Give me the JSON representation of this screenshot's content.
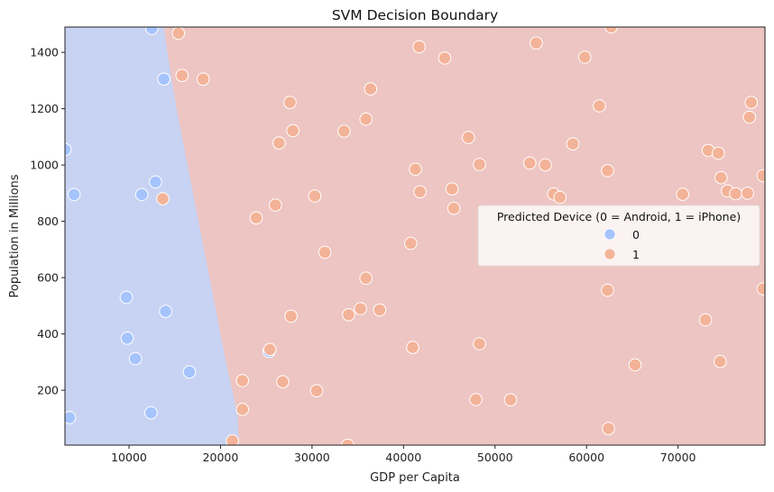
{
  "chart_data": {
    "type": "scatter",
    "title": "SVM Decision Boundary",
    "xlabel": "GDP per Capita",
    "ylabel": "Population in Millions",
    "xlim": [
      3000,
      79500
    ],
    "ylim": [
      5,
      1490
    ],
    "xticks": [
      10000,
      20000,
      30000,
      40000,
      50000,
      60000,
      70000
    ],
    "yticks": [
      200,
      400,
      600,
      800,
      1000,
      1200,
      1400
    ],
    "grid": false,
    "legend": {
      "title": "Predicted Device (0 = Android, 1 = iPhone)",
      "placement": "center-right",
      "entries": [
        "0",
        "1"
      ]
    },
    "colors": {
      "region_0": "#c8d2f2",
      "region_1": "#edc5c3",
      "point_0": "#a5c3fc",
      "point_1": "#f3b398",
      "point_edge": "#ffffff"
    },
    "decision_boundary": [
      [
        22000,
        5
      ],
      [
        21900,
        100
      ],
      [
        21300,
        200
      ],
      [
        20600,
        300
      ],
      [
        20000,
        400
      ],
      [
        19400,
        500
      ],
      [
        18800,
        600
      ],
      [
        18200,
        700
      ],
      [
        17600,
        800
      ],
      [
        17000,
        900
      ],
      [
        16400,
        1000
      ],
      [
        15800,
        1100
      ],
      [
        15200,
        1200
      ],
      [
        14700,
        1300
      ],
      [
        14200,
        1400
      ],
      [
        13800,
        1490
      ]
    ],
    "series": [
      {
        "name": "0",
        "points": [
          [
            12500,
            1485
          ],
          [
            13800,
            1305
          ],
          [
            3000,
            1055
          ],
          [
            4000,
            895
          ],
          [
            11400,
            895
          ],
          [
            12900,
            940
          ],
          [
            9700,
            530
          ],
          [
            14000,
            480
          ],
          [
            9800,
            385
          ],
          [
            10700,
            312
          ],
          [
            16600,
            265
          ],
          [
            25300,
            338
          ],
          [
            12400,
            120
          ],
          [
            3500,
            103
          ]
        ]
      },
      {
        "name": "1",
        "points": [
          [
            15400,
            1468
          ],
          [
            15800,
            1318
          ],
          [
            18100,
            1305
          ],
          [
            62700,
            1490
          ],
          [
            41700,
            1420
          ],
          [
            54500,
            1433
          ],
          [
            44500,
            1380
          ],
          [
            59800,
            1383
          ],
          [
            36400,
            1270
          ],
          [
            27600,
            1222
          ],
          [
            61400,
            1210
          ],
          [
            78000,
            1222
          ],
          [
            35900,
            1163
          ],
          [
            77800,
            1170
          ],
          [
            27900,
            1122
          ],
          [
            33500,
            1120
          ],
          [
            26400,
            1078
          ],
          [
            47100,
            1098
          ],
          [
            58500,
            1075
          ],
          [
            73300,
            1052
          ],
          [
            74400,
            1042
          ],
          [
            48300,
            1002
          ],
          [
            53800,
            1007
          ],
          [
            55500,
            1000
          ],
          [
            41300,
            985
          ],
          [
            62300,
            980
          ],
          [
            79300,
            962
          ],
          [
            74700,
            955
          ],
          [
            41800,
            905
          ],
          [
            45300,
            915
          ],
          [
            56400,
            897
          ],
          [
            57100,
            885
          ],
          [
            70500,
            896
          ],
          [
            75400,
            908
          ],
          [
            76300,
            898
          ],
          [
            77600,
            900
          ],
          [
            13700,
            880
          ],
          [
            30300,
            890
          ],
          [
            26000,
            858
          ],
          [
            45500,
            846
          ],
          [
            23900,
            812
          ],
          [
            31400,
            690
          ],
          [
            40800,
            722
          ],
          [
            35900,
            598
          ],
          [
            35300,
            490
          ],
          [
            37400,
            485
          ],
          [
            27700,
            463
          ],
          [
            34000,
            468
          ],
          [
            62300,
            555
          ],
          [
            79300,
            560
          ],
          [
            73000,
            450
          ],
          [
            48300,
            365
          ],
          [
            41000,
            352
          ],
          [
            25400,
            345
          ],
          [
            74600,
            302
          ],
          [
            65300,
            290
          ],
          [
            22400,
            234
          ],
          [
            26800,
            230
          ],
          [
            30500,
            198
          ],
          [
            47900,
            167
          ],
          [
            51700,
            166
          ],
          [
            22400,
            132
          ],
          [
            62400,
            64
          ],
          [
            21300,
            20
          ],
          [
            33900,
            5
          ]
        ]
      }
    ]
  }
}
